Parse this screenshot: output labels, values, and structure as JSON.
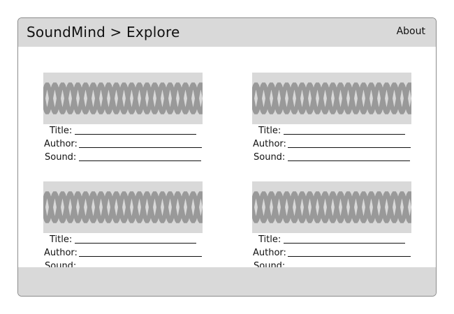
{
  "header": {
    "title": "SoundMind > Explore",
    "about_label": "About"
  },
  "field_labels": {
    "title": "Title:",
    "author": "Author:",
    "sound": "Sound:"
  },
  "cards": [
    {
      "waveform_icon": "waveform-icon"
    },
    {
      "waveform_icon": "waveform-icon"
    },
    {
      "waveform_icon": "waveform-icon"
    },
    {
      "waveform_icon": "waveform-icon"
    }
  ],
  "colors": {
    "bar_background": "#d9d9d9",
    "waveform_stroke": "#999999",
    "border": "#8c8c8c"
  }
}
